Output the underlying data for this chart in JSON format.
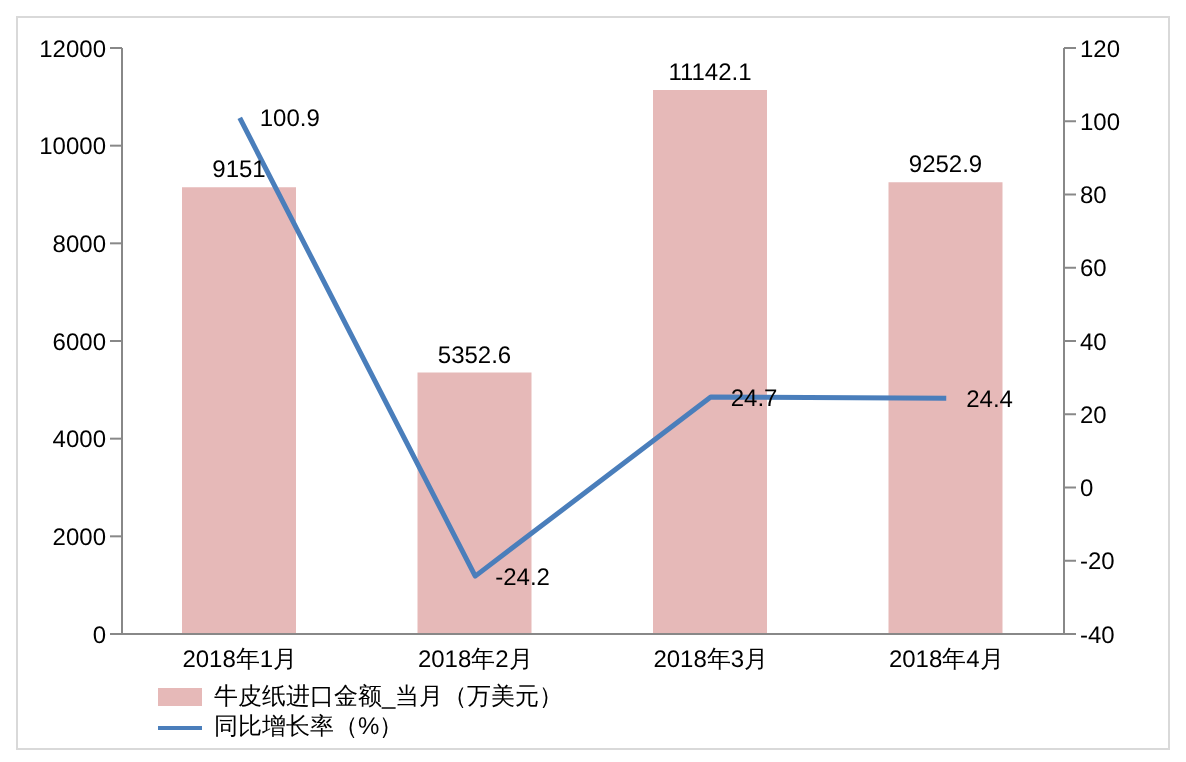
{
  "chart_data": {
    "type": "bar",
    "categories": [
      "2018年1月",
      "2018年2月",
      "2018年3月",
      "2018年4月"
    ],
    "series": [
      {
        "name": "牛皮纸进口金额_当月（万美元）",
        "color": "#e6b9b8",
        "values": [
          9151,
          5352.6,
          11142.1,
          9252.9
        ]
      },
      {
        "name": "同比增长率（%）",
        "type": "line",
        "axis": "y2",
        "color": "#4a7ebb",
        "values": [
          100.9,
          -24.2,
          24.7,
          24.4
        ]
      }
    ],
    "ylim": [
      0,
      12000
    ],
    "yticks": [
      0,
      2000,
      4000,
      6000,
      8000,
      10000,
      12000
    ],
    "y2lim": [
      -40,
      120
    ],
    "y2ticks": [
      -40,
      -20,
      0,
      20,
      40,
      60,
      80,
      100,
      120
    ],
    "data_labels": true,
    "legend": "bottom left",
    "marker": "none",
    "line_style": "solid"
  }
}
